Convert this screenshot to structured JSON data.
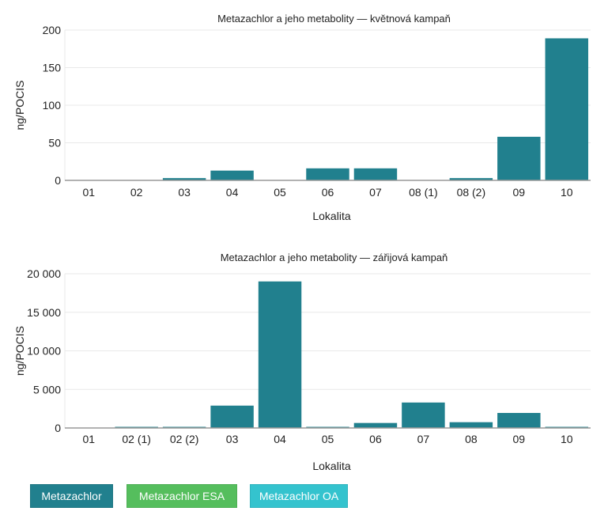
{
  "chart_data": [
    {
      "type": "bar",
      "title": "Metazachlor a jeho metabolity — květnová kampaň",
      "xlabel": "Lokalita",
      "ylabel": "ng/POCIS",
      "ylim": [
        0,
        200
      ],
      "yticks": [
        "0",
        "50",
        "100",
        "150",
        "200"
      ],
      "ytick_values": [
        0,
        50,
        100,
        150,
        200
      ],
      "grid": true,
      "categories": [
        "01",
        "02",
        "03",
        "04",
        "05",
        "06",
        "07",
        "08 (1)",
        "08 (2)",
        "09",
        "10"
      ],
      "series": [
        {
          "name": "Metazachlor",
          "values": [
            0,
            0,
            3,
            13,
            0,
            16,
            16,
            0,
            3,
            58,
            189
          ]
        }
      ]
    },
    {
      "type": "bar",
      "title": "Metazachlor a jeho metabolity — zářijová kampaň",
      "xlabel": "Lokalita",
      "ylabel": "ng/POCIS",
      "ylim": [
        0,
        20000
      ],
      "yticks": [
        "0",
        "5 000",
        "10 000",
        "15 000",
        "20 000"
      ],
      "ytick_values": [
        0,
        5000,
        10000,
        15000,
        20000
      ],
      "grid": true,
      "categories": [
        "01",
        "02 (1)",
        "02 (2)",
        "03",
        "04",
        "05",
        "06",
        "07",
        "08",
        "09",
        "10"
      ],
      "series": [
        {
          "name": "Metazachlor",
          "values": [
            0,
            150,
            150,
            2900,
            19000,
            150,
            650,
            3300,
            750,
            1950,
            150
          ]
        }
      ]
    }
  ],
  "legend": [
    {
      "label": "Metazachlor",
      "color": "#21808e"
    },
    {
      "label": "Metazachlor ESA",
      "color": "#55be5d"
    },
    {
      "label": "Metazachlor OA",
      "color": "#34c3ce"
    }
  ],
  "colors": {
    "bar": "#21808e",
    "grid": "#e8e8e8",
    "axis": "#999999",
    "text": "#222222"
  }
}
